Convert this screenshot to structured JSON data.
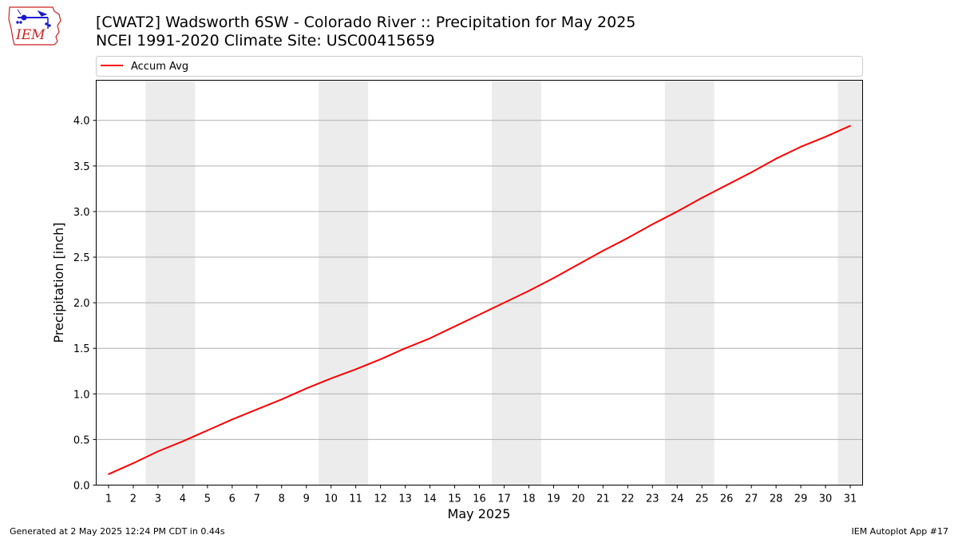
{
  "header": {
    "title_line1": "[CWAT2] Wadsworth 6SW - Colorado River :: Precipitation for May 2025",
    "title_line2": "NCEI 1991-2020 Climate Site: USC00415659",
    "logo_text": "IEM"
  },
  "footer": {
    "left": "Generated at 2 May 2025 12:24 PM CDT in 0.44s",
    "right": "IEM Autoplot App #17"
  },
  "colors": {
    "series_line": "#ff0000",
    "weekend_shade": "#ececec",
    "grid": "#b0b0b0",
    "logo_red": "#cc2222",
    "logo_blue": "#1a1acc"
  },
  "chart_data": {
    "type": "line",
    "xlabel": "May 2025",
    "ylabel": "Precipitation [inch]",
    "xlim": [
      0.5,
      31.5
    ],
    "ylim": [
      0,
      4.44
    ],
    "yticks": [
      0.0,
      0.5,
      1.0,
      1.5,
      2.0,
      2.5,
      3.0,
      3.5,
      4.0
    ],
    "ytick_labels": [
      "0.0",
      "0.5",
      "1.0",
      "1.5",
      "2.0",
      "2.5",
      "3.0",
      "3.5",
      "4.0"
    ],
    "x": [
      1,
      2,
      3,
      4,
      5,
      6,
      7,
      8,
      9,
      10,
      11,
      12,
      13,
      14,
      15,
      16,
      17,
      18,
      19,
      20,
      21,
      22,
      23,
      24,
      25,
      26,
      27,
      28,
      29,
      30,
      31
    ],
    "xtick_labels": [
      "1",
      "2",
      "3",
      "4",
      "5",
      "6",
      "7",
      "8",
      "9",
      "10",
      "11",
      "12",
      "13",
      "14",
      "15",
      "16",
      "17",
      "18",
      "19",
      "20",
      "21",
      "22",
      "23",
      "24",
      "25",
      "26",
      "27",
      "28",
      "29",
      "30",
      "31"
    ],
    "grid": "horizontal",
    "legend_position": "top",
    "shaded_day_ranges": [
      [
        2.5,
        4.5
      ],
      [
        9.5,
        11.5
      ],
      [
        16.5,
        18.5
      ],
      [
        23.5,
        25.5
      ],
      [
        30.5,
        31.5
      ]
    ],
    "series": [
      {
        "name": "Accum Avg",
        "color": "#ff0000",
        "values": [
          0.12,
          0.24,
          0.37,
          0.48,
          0.6,
          0.72,
          0.83,
          0.94,
          1.06,
          1.17,
          1.27,
          1.38,
          1.5,
          1.61,
          1.74,
          1.87,
          2.0,
          2.13,
          2.27,
          2.42,
          2.57,
          2.71,
          2.86,
          3.0,
          3.15,
          3.29,
          3.43,
          3.58,
          3.71,
          3.82,
          3.94
        ]
      }
    ]
  }
}
